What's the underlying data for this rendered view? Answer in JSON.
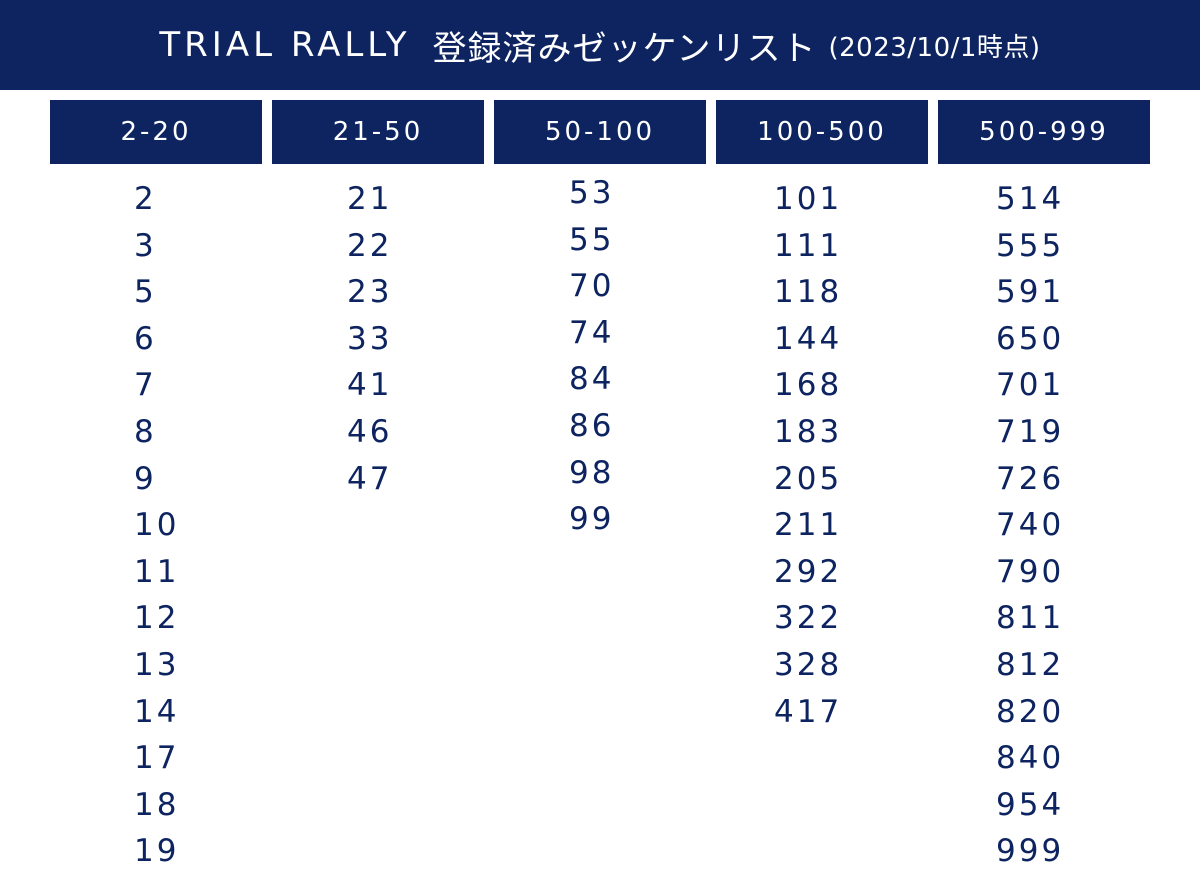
{
  "header": {
    "brand": "TRIAL RALLY",
    "subtitle": "登録済みゼッケンリスト",
    "as_of": "(2023/10/1時点)"
  },
  "columns": [
    {
      "label": "2-20",
      "numbers": [
        "2",
        "3",
        "5",
        "6",
        "7",
        "8",
        "9",
        "10",
        "11",
        "12",
        "13",
        "14",
        "17",
        "18",
        "19"
      ]
    },
    {
      "label": "21-50",
      "numbers": [
        "21",
        "22",
        "23",
        "33",
        "41",
        "46",
        "47"
      ]
    },
    {
      "label": "50-100",
      "numbers": [
        "53",
        "55",
        "70",
        "74",
        "84",
        "86",
        "98",
        "99"
      ]
    },
    {
      "label": "100-500",
      "numbers": [
        "101",
        "111",
        "118",
        "144",
        "168",
        "183",
        "205",
        "211",
        "292",
        "322",
        "328",
        "417"
      ]
    },
    {
      "label": "500-999",
      "numbers": [
        "514",
        "555",
        "591",
        "650",
        "701",
        "719",
        "726",
        "740",
        "790",
        "811",
        "812",
        "820",
        "840",
        "954",
        "999"
      ]
    }
  ],
  "colors": {
    "navy": "#0d2460",
    "background": "#ffffff"
  }
}
